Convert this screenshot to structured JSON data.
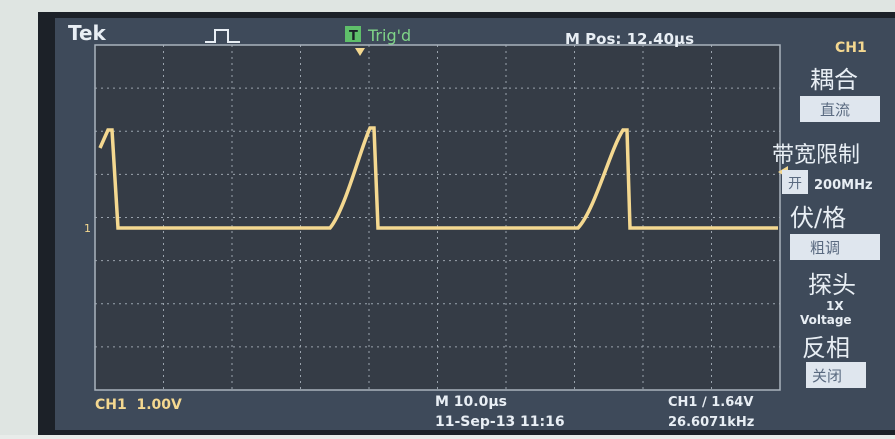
{
  "header": {
    "brand": "Tek",
    "trigger_icon": "T",
    "trigger_status": "Trig'd",
    "position": "M Pos: 12.40µs",
    "channel": "CH1"
  },
  "ground_marker": "1",
  "menu": [
    {
      "label": "耦合",
      "value": "直流"
    },
    {
      "label": "带宽限制",
      "state": "开",
      "value": "200MHz"
    },
    {
      "label": "伏/格",
      "value": "粗调"
    },
    {
      "label": "探头",
      "value": "1X",
      "sub": "Voltage"
    },
    {
      "label": "反相",
      "value": "关闭"
    }
  ],
  "footer": {
    "ch_scale": "CH1  1.00V",
    "time_scale": "M 10.0µs",
    "datetime": "11-Sep-13 11:16",
    "trigger": "CH1 ∕ 1.64V",
    "frequency": "26.6071kHz"
  }
}
